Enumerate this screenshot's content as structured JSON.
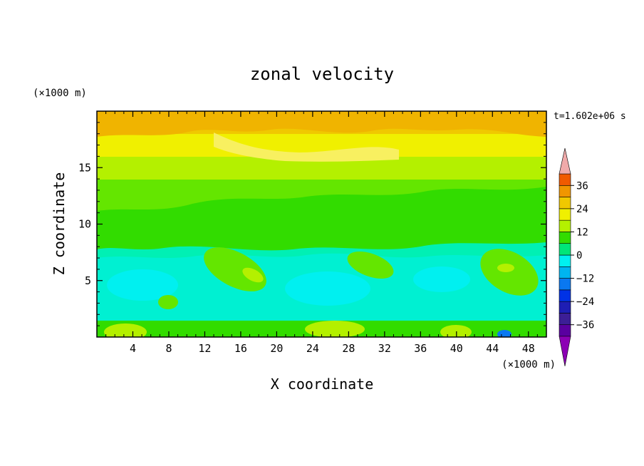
{
  "chart_data": {
    "type": "heatmap",
    "title": "zonal velocity",
    "xlabel": "X coordinate",
    "ylabel": "Z coordinate",
    "x_unit_label": "(×1000 m)",
    "y_unit_label": "(×1000 m)",
    "time_label": "t=1.602e+06 s",
    "xlim": [
      0,
      50
    ],
    "ylim": [
      0,
      20
    ],
    "x_ticks": [
      4,
      8,
      12,
      16,
      20,
      24,
      28,
      32,
      36,
      40,
      44,
      48
    ],
    "y_ticks": [
      5,
      10,
      15
    ],
    "colorbar": {
      "levels": [
        -42,
        -36,
        -30,
        -24,
        -18,
        -12,
        -6,
        0,
        6,
        12,
        18,
        24,
        30,
        36,
        42
      ],
      "tick_labels": [
        "36",
        "24",
        "12",
        "0",
        "−12",
        "−24",
        "−36"
      ],
      "tick_values": [
        36,
        24,
        12,
        0,
        -12,
        -24,
        -36
      ],
      "colors": [
        "#5a00a0",
        "#3c1e96",
        "#1e1eb4",
        "#0032e6",
        "#0a78f0",
        "#00b4f0",
        "#00f0f0",
        "#00e678",
        "#32dc00",
        "#b4f000",
        "#f0f000",
        "#f0c800",
        "#f09600",
        "#f05a00",
        "#e61e00",
        "#f0aaaa"
      ],
      "extend_low_color": "#8c00b4",
      "extend_high_color": "#f0aaaa"
    },
    "field_description_layers": [
      {
        "z_range": [
          18,
          20
        ],
        "approx_value": 24
      },
      {
        "z_range": [
          16,
          18
        ],
        "approx_value": 20
      },
      {
        "z_range": [
          14,
          16
        ],
        "approx_value": 14
      },
      {
        "z_range": [
          11,
          14
        ],
        "approx_value": 6
      },
      {
        "z_range": [
          9,
          11
        ],
        "approx_value": 2
      },
      {
        "z_range": [
          0,
          9
        ],
        "approx_value": -6
      }
    ]
  }
}
